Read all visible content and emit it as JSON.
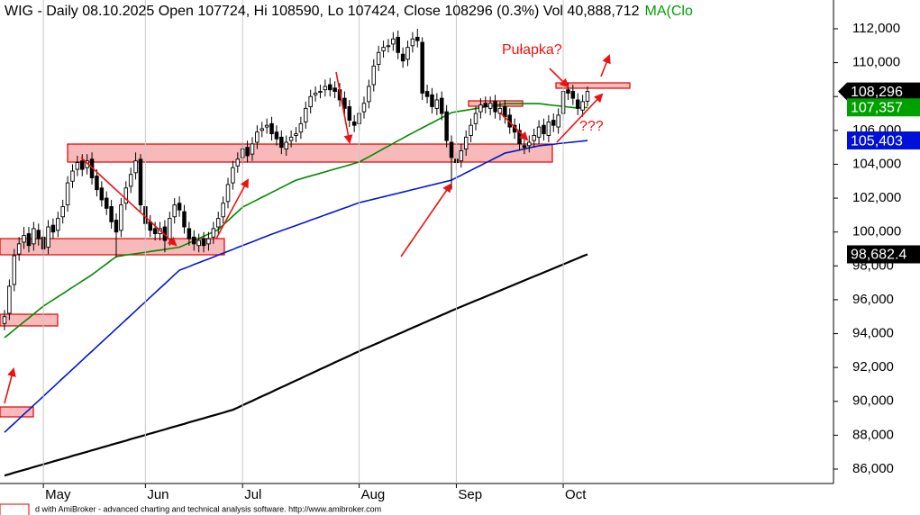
{
  "chart_data": {
    "type": "candlestick",
    "title": "WIG - Daily 08.10.2025 Open 107724, Hi 108590, Lo 107424, Close 108296 (0.3%) Vol 40,888,712",
    "title_ma": "MA(Clo",
    "categories": [
      null,
      null,
      null,
      null,
      null,
      null,
      null,
      null,
      "May",
      null,
      null,
      null,
      null,
      null,
      null,
      null,
      null,
      null,
      null,
      null,
      null,
      null,
      null,
      null,
      null,
      null,
      null,
      null,
      null,
      "Jun",
      null,
      null,
      null,
      null,
      null,
      null,
      null,
      null,
      null,
      null,
      null,
      null,
      null,
      null,
      null,
      null,
      null,
      null,
      null,
      "Jul",
      null,
      null,
      null,
      null,
      null,
      null,
      null,
      null,
      null,
      null,
      null,
      null,
      null,
      null,
      null,
      null,
      null,
      null,
      null,
      null,
      null,
      null,
      null,
      "Aug",
      null,
      null,
      null,
      null,
      null,
      null,
      null,
      null,
      null,
      null,
      null,
      null,
      null,
      null,
      null,
      null,
      null,
      null,
      null,
      "Sep",
      null,
      null,
      null,
      null,
      null,
      null,
      null,
      null,
      null,
      null,
      null,
      null,
      null,
      null,
      null,
      null,
      null,
      null,
      null,
      null,
      null,
      "Oct",
      null,
      null,
      null,
      null,
      null
    ],
    "open": [
      94600,
      95200,
      96900,
      98700,
      99400,
      99900,
      99300,
      100100,
      99700,
      99100,
      100400,
      100100,
      100900,
      101600,
      103000,
      103700,
      104200,
      103800,
      104300,
      103300,
      102600,
      102000,
      101500,
      100700,
      100100,
      101700,
      102700,
      103500,
      104300,
      101500,
      100600,
      100200,
      99900,
      100300,
      99600,
      100900,
      101700,
      101200,
      100200,
      99700,
      99200,
      99600,
      99300,
      99700,
      100300,
      100900,
      101800,
      102900,
      103900,
      104400,
      105000,
      104600,
      105300,
      106000,
      106200,
      106400,
      105900,
      105600,
      104900,
      105400,
      105700,
      105900,
      106500,
      107400,
      108100,
      108300,
      108400,
      108700,
      108500,
      108400,
      107900,
      107400,
      106500,
      106400,
      107100,
      107700,
      108700,
      109900,
      110700,
      111000,
      111100,
      111500,
      110500,
      110200,
      111000,
      111500,
      111200,
      108300,
      108100,
      107300,
      107900,
      107100,
      105300,
      104300,
      104200,
      104900,
      105700,
      106400,
      107100,
      107600,
      107300,
      107700,
      107000,
      107400,
      106900,
      106300,
      106000,
      105100,
      105100,
      105400,
      105600,
      106300,
      105700,
      106600,
      106200,
      107000,
      108400,
      108300,
      107800,
      107200,
      107724
    ],
    "high": [
      95400,
      97200,
      99000,
      99700,
      100300,
      100300,
      100600,
      100500,
      100100,
      100700,
      100800,
      101200,
      101900,
      103300,
      104000,
      104500,
      104600,
      104600,
      104700,
      103700,
      103000,
      102400,
      101900,
      101100,
      102000,
      103000,
      103800,
      104700,
      104600,
      101900,
      101000,
      100600,
      100600,
      100700,
      101200,
      102000,
      102100,
      101600,
      100600,
      100100,
      99900,
      100000,
      100000,
      100600,
      101200,
      102100,
      103200,
      104200,
      104700,
      105300,
      105400,
      105600,
      106300,
      106500,
      106700,
      106800,
      106300,
      106000,
      105700,
      106000,
      106200,
      106800,
      107700,
      108400,
      108600,
      108700,
      109000,
      109100,
      108900,
      108800,
      108300,
      107800,
      106900,
      107400,
      108000,
      109000,
      110200,
      111000,
      111300,
      111400,
      111800,
      111900,
      110900,
      111300,
      111800,
      112000,
      111500,
      108700,
      108500,
      108200,
      108300,
      107500,
      105700,
      104700,
      105200,
      106000,
      106700,
      107400,
      107900,
      108000,
      108000,
      108100,
      107700,
      107800,
      107300,
      106700,
      106400,
      105500,
      105700,
      106100,
      106600,
      106700,
      106900,
      107000,
      107300,
      108700,
      108800,
      108700,
      108200,
      108100,
      108590
    ],
    "low": [
      94200,
      94800,
      96500,
      98300,
      99000,
      98800,
      98900,
      99200,
      98600,
      98700,
      99600,
      99700,
      100500,
      101200,
      102600,
      103300,
      103300,
      103400,
      102800,
      102100,
      101500,
      101000,
      100200,
      98500,
      99700,
      101300,
      102300,
      103100,
      101200,
      100100,
      99700,
      99500,
      99500,
      98800,
      99200,
      100500,
      100900,
      99900,
      99200,
      98900,
      98800,
      98800,
      98900,
      99300,
      99900,
      100500,
      101400,
      102500,
      103500,
      104000,
      104100,
      104200,
      104900,
      105600,
      105800,
      105400,
      105100,
      104600,
      104500,
      105000,
      105300,
      105500,
      106100,
      107000,
      107700,
      107900,
      108000,
      108000,
      107900,
      107400,
      106900,
      106200,
      105900,
      106000,
      106700,
      107300,
      108300,
      109500,
      110300,
      110600,
      110700,
      110200,
      109700,
      109800,
      110600,
      110900,
      107800,
      107600,
      107000,
      106900,
      106600,
      105000,
      102500,
      103700,
      103800,
      104500,
      105300,
      106000,
      106700,
      107000,
      106900,
      106700,
      106600,
      106400,
      105800,
      105500,
      104800,
      104600,
      104700,
      105000,
      105200,
      105400,
      105300,
      105900,
      105800,
      106600,
      107800,
      107500,
      106900,
      106800,
      107424
    ],
    "close": [
      95000,
      96800,
      98600,
      99300,
      99800,
      99200,
      100200,
      99600,
      99000,
      100300,
      100000,
      100800,
      101500,
      102900,
      103600,
      104100,
      103700,
      104200,
      103200,
      102500,
      101900,
      101400,
      100600,
      100000,
      101600,
      102600,
      103400,
      104200,
      101600,
      100500,
      100100,
      99900,
      100200,
      99500,
      100800,
      101600,
      101300,
      100300,
      99600,
      99300,
      99500,
      99200,
      99600,
      100200,
      100800,
      101700,
      102800,
      103800,
      104300,
      104900,
      104500,
      105200,
      105900,
      106100,
      106300,
      105800,
      105500,
      105000,
      105300,
      105600,
      105800,
      106400,
      107300,
      108000,
      108200,
      108300,
      108600,
      108400,
      108300,
      107800,
      107300,
      106600,
      106300,
      107000,
      107600,
      108600,
      109800,
      110600,
      110900,
      111000,
      111400,
      110600,
      110100,
      110900,
      111400,
      111300,
      108200,
      108000,
      107400,
      107800,
      107000,
      105400,
      104400,
      104100,
      104800,
      105600,
      106300,
      107000,
      107500,
      107400,
      107600,
      107100,
      107300,
      106800,
      106200,
      105900,
      105200,
      105000,
      105300,
      105700,
      106200,
      105800,
      106500,
      106300,
      106900,
      108300,
      108200,
      107900,
      107300,
      107700,
      108296
    ],
    "series": [
      {
        "color": "#008a00",
        "values": [
          93760,
          93990,
          94230,
          94460,
          94690,
          94920,
          95160,
          95390,
          95620,
          95810,
          95990,
          96180,
          96360,
          96550,
          96740,
          96920,
          97110,
          97290,
          97480,
          97690,
          97910,
          98120,
          98340,
          98550,
          98590,
          98640,
          98680,
          98720,
          98760,
          98800,
          98850,
          98890,
          98930,
          98970,
          99020,
          99060,
          99100,
          99230,
          99360,
          99490,
          99620,
          99750,
          99880,
          100010,
          100140,
          100410,
          100670,
          100940,
          101200,
          101470,
          101610,
          101760,
          101900,
          102050,
          102190,
          102340,
          102480,
          102630,
          102770,
          102920,
          103060,
          103140,
          103230,
          103310,
          103390,
          103470,
          103550,
          103640,
          103720,
          103800,
          103880,
          103960,
          104050,
          104130,
          104290,
          104440,
          104600,
          104760,
          104920,
          105070,
          105230,
          105390,
          105540,
          105700,
          105850,
          106000,
          106150,
          106300,
          106450,
          106600,
          106750,
          106900,
          107050,
          107100,
          107150,
          107190,
          107240,
          107290,
          107340,
          107390,
          107440,
          107480,
          107530,
          107580,
          107580,
          107580,
          107580,
          107580,
          107580,
          107580,
          107580,
          107550,
          107510,
          107480,
          107450,
          107420,
          107380,
          107350,
          107320,
          107340,
          107357
        ]
      },
      {
        "color": "#0018d0",
        "values": [
          88170,
          88440,
          88700,
          88970,
          89240,
          89500,
          89770,
          90030,
          90300,
          90570,
          90830,
          91100,
          91370,
          91630,
          91900,
          92160,
          92430,
          92700,
          92960,
          93230,
          93490,
          93760,
          94020,
          94290,
          94550,
          94820,
          95080,
          95350,
          95620,
          95880,
          96150,
          96410,
          96680,
          96940,
          97210,
          97480,
          97740,
          97850,
          97960,
          98080,
          98190,
          98300,
          98410,
          98520,
          98640,
          98750,
          98860,
          98970,
          99090,
          99200,
          99310,
          99420,
          99530,
          99650,
          99760,
          99870,
          99970,
          100080,
          100180,
          100280,
          100380,
          100490,
          100590,
          100700,
          100800,
          100900,
          101010,
          101110,
          101210,
          101320,
          101420,
          101520,
          101630,
          101730,
          101800,
          101870,
          101940,
          102010,
          102080,
          102150,
          102220,
          102290,
          102360,
          102430,
          102500,
          102570,
          102640,
          102710,
          102780,
          102850,
          102920,
          102990,
          103060,
          103210,
          103350,
          103500,
          103640,
          103790,
          103930,
          104080,
          104220,
          104370,
          104510,
          104660,
          104720,
          104780,
          104840,
          104910,
          104970,
          105030,
          105090,
          105120,
          105150,
          105180,
          105220,
          105250,
          105280,
          105310,
          105340,
          105370,
          105403
        ]
      },
      {
        "color": "#000000",
        "values": [
          85620,
          85700,
          85790,
          85870,
          85950,
          86030,
          86120,
          86200,
          86280,
          86360,
          86450,
          86530,
          86610,
          86690,
          86780,
          86860,
          86940,
          87020,
          87110,
          87190,
          87270,
          87350,
          87440,
          87520,
          87600,
          87680,
          87770,
          87850,
          87930,
          88010,
          88100,
          88180,
          88260,
          88340,
          88430,
          88510,
          88590,
          88670,
          88760,
          88840,
          88920,
          89000,
          89090,
          89170,
          89250,
          89330,
          89420,
          89500,
          89630,
          89770,
          89900,
          90030,
          90170,
          90300,
          90430,
          90560,
          90700,
          90830,
          90960,
          91100,
          91230,
          91360,
          91500,
          91630,
          91760,
          91900,
          92030,
          92160,
          92300,
          92430,
          92560,
          92690,
          92830,
          92960,
          93090,
          93210,
          93340,
          93460,
          93590,
          93720,
          93840,
          93970,
          94090,
          94220,
          94350,
          94470,
          94600,
          94720,
          94850,
          94970,
          95100,
          95220,
          95350,
          95470,
          95590,
          95710,
          95830,
          95950,
          96060,
          96180,
          96300,
          96420,
          96540,
          96660,
          96780,
          96900,
          97020,
          97140,
          97260,
          97380,
          97490,
          97610,
          97730,
          97850,
          97970,
          98090,
          98210,
          98330,
          98450,
          98570,
          98682
        ]
      }
    ],
    "ylim": [
      85150,
      113700
    ],
    "yticks": [
      {
        "value": 86000,
        "label": "86,000"
      },
      {
        "value": 88000,
        "label": "88,000"
      },
      {
        "value": 90000,
        "label": "90,000"
      },
      {
        "value": 92000,
        "label": "92,000"
      },
      {
        "value": 94000,
        "label": "94,000"
      },
      {
        "value": 96000,
        "label": "96,000"
      },
      {
        "value": 98000,
        "label": "98,000"
      },
      {
        "value": 100000,
        "label": "100,000"
      },
      {
        "value": 102000,
        "label": "102,000"
      },
      {
        "value": 104000,
        "label": "104,000"
      },
      {
        "value": 106000,
        "label": "106,000"
      },
      {
        "value": 108000,
        "label": "108,000"
      },
      {
        "value": 110000,
        "label": "110,000"
      },
      {
        "value": 112000,
        "label": "112,000"
      }
    ],
    "price_tags": [
      {
        "value": 108296,
        "label": "108,296",
        "color": "#000000"
      },
      {
        "value": 107357,
        "label": "107,357",
        "color": "#00a000"
      },
      {
        "value": 105403,
        "label": "105,403",
        "color": "#0010d8"
      },
      {
        "value": 98682.4,
        "label": "98,682.4",
        "color": "#000000"
      }
    ],
    "annotations": [
      "Pułapka?",
      "???"
    ],
    "footer": "d with AmiBroker - advanced charting and technical analysis software. http://www.amibroker.com"
  }
}
